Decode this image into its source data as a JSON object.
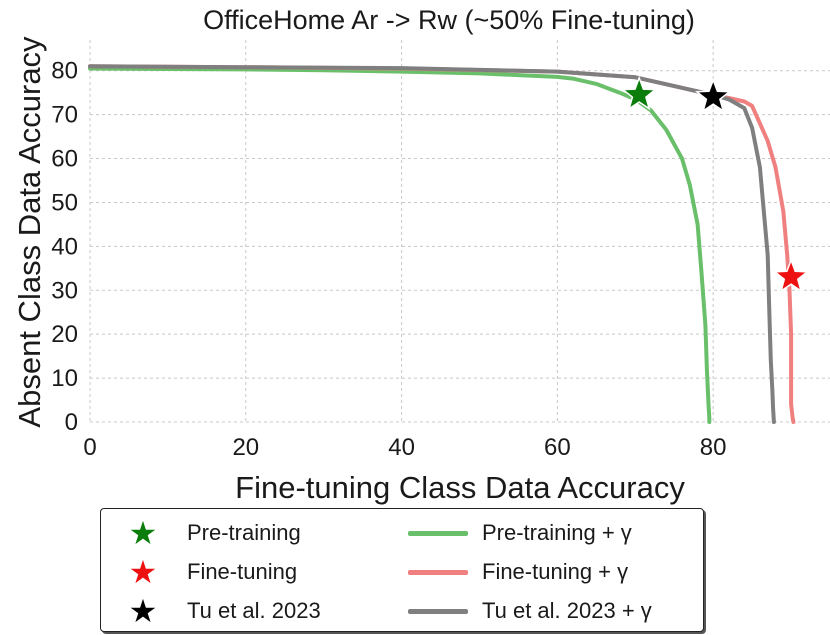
{
  "chart_data": {
    "type": "line",
    "title": "OfficeHome Ar -> Rw (~50% Fine-tuning)",
    "xlabel": "Fine-tuning Class Data Accuracy",
    "ylabel": "Absent Class Data Accuracy",
    "xlim": [
      0,
      95
    ],
    "ylim": [
      0,
      87
    ],
    "xticks": [
      0,
      20,
      40,
      60,
      80
    ],
    "yticks": [
      0,
      10,
      20,
      30,
      40,
      50,
      60,
      70,
      80
    ],
    "grid": true,
    "legend_position": "bottom",
    "series": [
      {
        "name": "Pre-training + γ",
        "color": "#6abf6a",
        "kind": "line",
        "x": [
          0,
          10,
          20,
          30,
          40,
          50,
          55,
          60,
          62,
          65,
          68,
          70,
          72,
          74,
          76,
          77,
          78,
          78.5,
          79,
          79.2,
          79.4,
          79.5,
          79.5
        ],
        "y": [
          80.5,
          80.4,
          80.3,
          80.1,
          79.8,
          79.4,
          79.0,
          78.6,
          78.2,
          77.0,
          75.0,
          73.5,
          71.0,
          66.5,
          60.0,
          54.0,
          45.0,
          34.0,
          22.0,
          12.0,
          4.0,
          1.0,
          0
        ]
      },
      {
        "name": "Fine-tuning + γ",
        "color": "#f08080",
        "kind": "line",
        "x": [
          0,
          20,
          40,
          60,
          70,
          75,
          80,
          82,
          84,
          85,
          86,
          87,
          88,
          89,
          89.5,
          89.8,
          90,
          90,
          90,
          90.2,
          90.3
        ],
        "y": [
          81.0,
          80.8,
          80.5,
          79.8,
          78.5,
          76.5,
          74.5,
          73.8,
          73.0,
          72.0,
          68.0,
          64.0,
          58.0,
          48.0,
          38.0,
          30.0,
          20.0,
          10.0,
          4.0,
          1.0,
          0
        ]
      },
      {
        "name": "Tu et al. 2023 + γ",
        "color": "#7f7f7f",
        "kind": "line",
        "x": [
          0,
          20,
          40,
          60,
          70,
          75,
          80,
          82,
          84,
          85,
          86,
          86.5,
          87,
          87.2,
          87.4,
          87.6,
          87.7,
          87.8
        ],
        "y": [
          81.0,
          80.8,
          80.6,
          79.8,
          78.5,
          76.5,
          74.5,
          73.5,
          71.5,
          67.0,
          58.0,
          48.0,
          38.0,
          26.0,
          14.0,
          7.0,
          3.0,
          0
        ]
      },
      {
        "name": "Pre-training",
        "color": "#0a7d0a",
        "kind": "star",
        "x": [
          70.5
        ],
        "y": [
          74.5
        ]
      },
      {
        "name": "Fine-tuning",
        "color": "#ee1111",
        "kind": "star",
        "x": [
          90
        ],
        "y": [
          33
        ]
      },
      {
        "name": "Tu et al. 2023",
        "color": "#000000",
        "kind": "star",
        "x": [
          80
        ],
        "y": [
          74
        ]
      }
    ],
    "legend": [
      {
        "label": "Pre-training",
        "kind": "star",
        "color": "#0a7d0a"
      },
      {
        "label": "Fine-tuning",
        "kind": "star",
        "color": "#ee1111"
      },
      {
        "label": "Tu et al. 2023",
        "kind": "star",
        "color": "#000000"
      },
      {
        "label": "Pre-training + γ",
        "kind": "line",
        "color": "#6abf6a"
      },
      {
        "label": "Fine-tuning + γ",
        "kind": "line",
        "color": "#f08080"
      },
      {
        "label": "Tu et al. 2023 + γ",
        "kind": "line",
        "color": "#7f7f7f"
      }
    ]
  }
}
